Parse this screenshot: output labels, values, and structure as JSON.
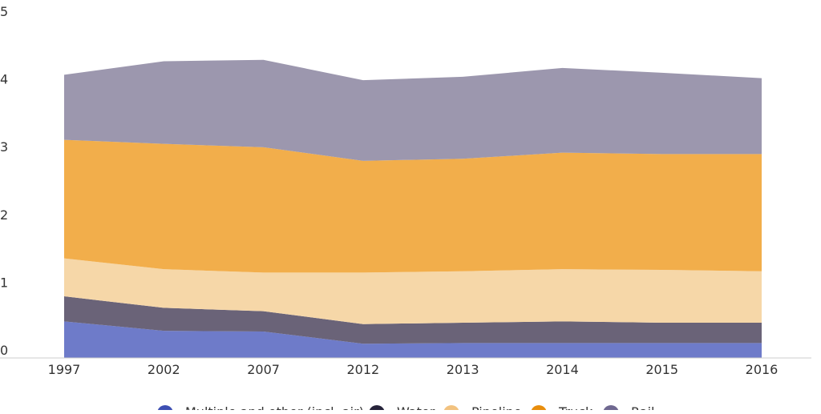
{
  "chart_data": {
    "type": "area",
    "stacked": true,
    "categories": [
      "1997",
      "2002",
      "2007",
      "2012",
      "2013",
      "2014",
      "2015",
      "2016"
    ],
    "ylim": [
      0,
      5
    ],
    "yticks": [
      "0",
      "1",
      "2",
      "3",
      "4",
      "5"
    ],
    "grid": false,
    "legend_position": "bottom",
    "series": [
      {
        "name": "Multiple and other (incl. air)",
        "color": "#6e7bc9",
        "legend_color": "#3d4fb3",
        "values": [
          0.54,
          0.4,
          0.39,
          0.21,
          0.22,
          0.22,
          0.22,
          0.22
        ]
      },
      {
        "name": "Water",
        "color": "#6a6378",
        "legend_color": "#26233a",
        "values": [
          0.37,
          0.34,
          0.3,
          0.29,
          0.3,
          0.32,
          0.3,
          0.3
        ]
      },
      {
        "name": "Pipeline",
        "color": "#f6d7a8",
        "legend_color": "#f2c27f",
        "values": [
          0.56,
          0.57,
          0.57,
          0.76,
          0.76,
          0.77,
          0.78,
          0.76
        ]
      },
      {
        "name": "Truck",
        "color": "#f2ae4b",
        "legend_color": "#e88d0c",
        "values": [
          1.75,
          1.85,
          1.85,
          1.65,
          1.66,
          1.72,
          1.71,
          1.73
        ]
      },
      {
        "name": "Rail",
        "color": "#9c97ae",
        "legend_color": "#6f6890",
        "values": [
          0.96,
          1.22,
          1.29,
          1.19,
          1.21,
          1.25,
          1.2,
          1.12
        ]
      }
    ]
  }
}
